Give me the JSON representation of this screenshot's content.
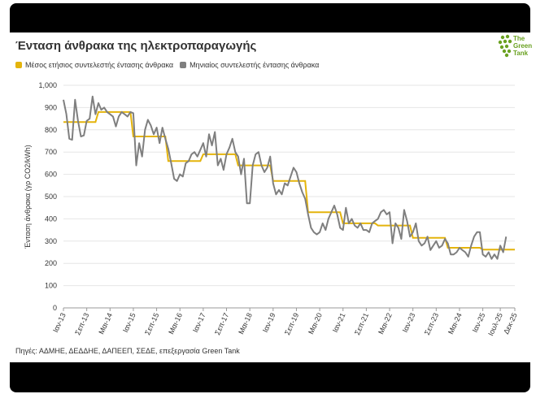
{
  "title": "Ένταση άνθρακα της ηλεκτροπαραγωγής",
  "legend": {
    "annual_label": "Μέσος ετήσιος συντελεστής έντασης άνθρακα",
    "monthly_label": "Μηνιαίος συντελεστής έντασης άνθρακα"
  },
  "source": "Πηγές: ΑΔΜΗΕ, ΔΕΔΔΗΕ, ΔΑΠΕΕΠ, ΣΕΔΕ, επεξεργασία Green Tank",
  "logo": {
    "line1": "The",
    "line2": "Green",
    "line3": "Tank"
  },
  "colors": {
    "annual": "#e4b40c",
    "monthly": "#7f7f7f",
    "grid": "#e6e6e6",
    "logo": "#6aa121"
  },
  "chart_data": {
    "type": "line",
    "ylabel": "Ένταση άνθρακα (γρ CO2/kWh)",
    "xlabel": "",
    "ylim": [
      0,
      1000
    ],
    "yticks": [
      "0",
      "100",
      "200",
      "300",
      "400",
      "500",
      "600",
      "700",
      "800",
      "900",
      "1,000"
    ],
    "x_range_months": [
      0,
      155
    ],
    "xticks": [
      {
        "label": "Ιαν-13",
        "m": 0
      },
      {
        "label": "Σεπ-13",
        "m": 8
      },
      {
        "label": "Μαι-14",
        "m": 16
      },
      {
        "label": "Ιαν-15",
        "m": 24
      },
      {
        "label": "Σεπ-15",
        "m": 32
      },
      {
        "label": "Μαι-16",
        "m": 40
      },
      {
        "label": "Ιαν-17",
        "m": 48
      },
      {
        "label": "Σεπ-17",
        "m": 56
      },
      {
        "label": "Μαι-18",
        "m": 64
      },
      {
        "label": "Ιαν-19",
        "m": 72
      },
      {
        "label": "Σεπ-19",
        "m": 80
      },
      {
        "label": "Μαι-20",
        "m": 88
      },
      {
        "label": "Ιαν-21",
        "m": 96
      },
      {
        "label": "Σεπ-21",
        "m": 104
      },
      {
        "label": "Μαι-22",
        "m": 112
      },
      {
        "label": "Ιαν-23",
        "m": 120
      },
      {
        "label": "Σεπ-23",
        "m": 128
      },
      {
        "label": "Μαι-24",
        "m": 136
      },
      {
        "label": "Ιαν-25",
        "m": 144
      },
      {
        "label": "Ιουλ-25",
        "m": 150
      },
      {
        "label": "Δεκ-25",
        "m": 155
      }
    ],
    "series": [
      {
        "name": "Μέσος ετήσιος συντελεστής έντασης άνθρακα",
        "kind": "step",
        "start_year": 2013,
        "values": [
          835,
          880,
          770,
          660,
          690,
          640,
          570,
          430,
          380,
          370,
          315,
          270,
          262
        ]
      },
      {
        "name": "Μηνιαίος συντελεστής έντασης άνθρακα",
        "kind": "monthly",
        "start": "Ιαν-13",
        "values": [
          935,
          870,
          760,
          755,
          935,
          840,
          770,
          775,
          840,
          850,
          950,
          870,
          920,
          890,
          900,
          880,
          870,
          860,
          815,
          860,
          880,
          870,
          860,
          880,
          875,
          640,
          740,
          680,
          800,
          845,
          820,
          780,
          810,
          740,
          810,
          760,
          715,
          650,
          580,
          570,
          600,
          590,
          650,
          660,
          690,
          700,
          680,
          710,
          740,
          680,
          780,
          730,
          790,
          640,
          670,
          620,
          690,
          720,
          760,
          700,
          680,
          600,
          670,
          470,
          470,
          640,
          690,
          700,
          640,
          610,
          630,
          680,
          560,
          510,
          530,
          510,
          560,
          550,
          590,
          630,
          610,
          560,
          520,
          490,
          420,
          360,
          340,
          330,
          340,
          380,
          350,
          400,
          430,
          460,
          420,
          360,
          350,
          450,
          380,
          400,
          370,
          360,
          380,
          350,
          350,
          340,
          380,
          390,
          400,
          430,
          440,
          420,
          430,
          290,
          380,
          360,
          310,
          440,
          390,
          320,
          340,
          380,
          300,
          280,
          290,
          320,
          260,
          280,
          300,
          270,
          280,
          310,
          290,
          240,
          240,
          250,
          270,
          260,
          250,
          230,
          280,
          320,
          340,
          340,
          240,
          230,
          250,
          220,
          240,
          220,
          280,
          250,
          320
        ]
      }
    ]
  }
}
